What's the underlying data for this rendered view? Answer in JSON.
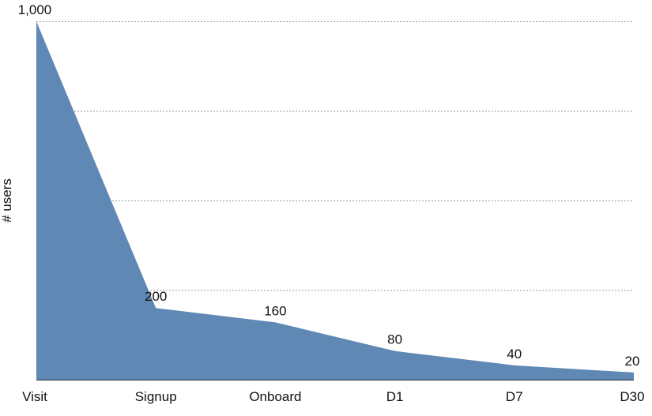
{
  "chart_data": {
    "type": "area",
    "title": "",
    "xlabel": "",
    "ylabel": "# users",
    "categories": [
      "Visit",
      "Signup",
      "Onboard",
      "D1",
      "D7",
      "D30"
    ],
    "values": [
      1000,
      200,
      160,
      80,
      40,
      20
    ],
    "data_labels": [
      "1,000",
      "200",
      "160",
      "80",
      "40",
      "20"
    ],
    "ylim": [
      0,
      1000
    ],
    "y_gridlines": [
      250,
      500,
      750,
      1000
    ],
    "grid": "horizontal dotted",
    "legend": "none",
    "colors": {
      "fill": "#5f88b5",
      "grid": "#999999",
      "baseline": "#333333"
    }
  }
}
